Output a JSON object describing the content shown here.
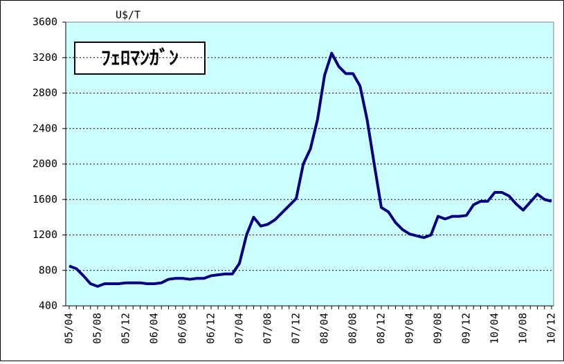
{
  "chart_data": {
    "type": "line",
    "title": "ﾌｪﾛﾏﾝｶﾞﾝ",
    "y_label": "U$/T",
    "categories": [
      "05/04",
      null,
      null,
      null,
      "05/08",
      null,
      null,
      null,
      "05/12",
      null,
      null,
      null,
      "06/04",
      null,
      null,
      null,
      "06/08",
      null,
      null,
      null,
      "06/12",
      null,
      null,
      null,
      "07/04",
      null,
      null,
      null,
      "07/08",
      null,
      null,
      null,
      "07/12",
      null,
      null,
      null,
      "08/04",
      null,
      null,
      null,
      "08/08",
      null,
      null,
      null,
      "08/12",
      null,
      null,
      null,
      "09/04",
      null,
      null,
      null,
      "09/08",
      null,
      null,
      null,
      "09/12",
      null,
      null,
      null,
      "10/04",
      null,
      null,
      null,
      "10/08",
      null,
      null,
      null,
      "10/12"
    ],
    "values": [
      850,
      820,
      740,
      650,
      620,
      650,
      650,
      650,
      660,
      660,
      660,
      650,
      650,
      660,
      700,
      710,
      710,
      700,
      710,
      710,
      740,
      750,
      760,
      760,
      880,
      1200,
      1400,
      1300,
      1320,
      1370,
      1450,
      1530,
      1610,
      2000,
      2170,
      2500,
      3000,
      3250,
      3100,
      3020,
      3020,
      2880,
      2500,
      2000,
      1510,
      1460,
      1340,
      1260,
      1210,
      1190,
      1170,
      1200,
      1410,
      1380,
      1410,
      1410,
      1420,
      1540,
      1580,
      1580,
      1680,
      1680,
      1640,
      1550,
      1480,
      1570,
      1660,
      1600,
      1580
    ],
    "color": "#000080",
    "ylim": [
      400,
      3600
    ],
    "yticks": [
      400,
      800,
      1200,
      1600,
      2000,
      2400,
      2800,
      3200,
      3600
    ],
    "grid": true
  }
}
